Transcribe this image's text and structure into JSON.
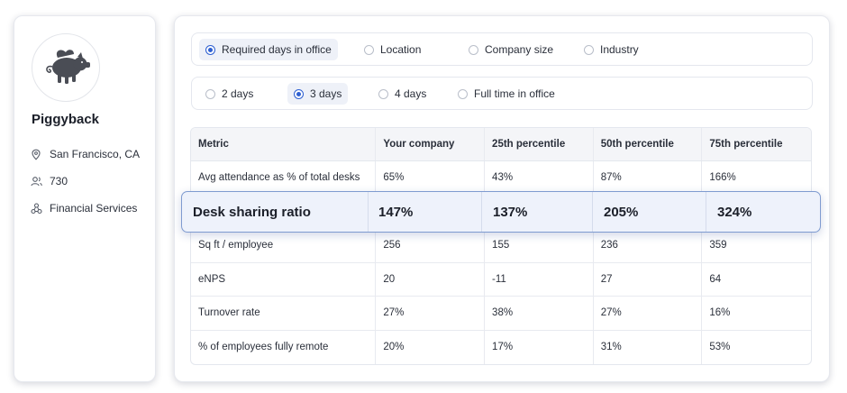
{
  "profile": {
    "name": "Piggyback",
    "location": "San Francisco, CA",
    "employees": "730",
    "industry": "Financial Services",
    "icons": {
      "location": "map-pin-icon",
      "employees": "users-icon",
      "industry": "network-icon",
      "avatar": "flying-pig-logo"
    }
  },
  "filters": {
    "primary": [
      {
        "label": "Required days in office",
        "selected": true
      },
      {
        "label": "Location",
        "selected": false
      },
      {
        "label": "Company size",
        "selected": false
      },
      {
        "label": "Industry",
        "selected": false
      }
    ],
    "days": [
      {
        "label": "2 days",
        "selected": false
      },
      {
        "label": "3 days",
        "selected": true
      },
      {
        "label": "4 days",
        "selected": false
      },
      {
        "label": "Full time in office",
        "selected": false
      }
    ]
  },
  "table": {
    "headers": [
      "Metric",
      "Your company",
      "25th percentile",
      "50th percentile",
      "75th percentile"
    ],
    "rows": [
      [
        "Avg attendance as % of total desks",
        "65%",
        "43%",
        "87%",
        "166%"
      ],
      [
        "Sq ft / employee",
        "256",
        "155",
        "236",
        "359"
      ],
      [
        "eNPS",
        "20",
        "-11",
        "27",
        "64"
      ],
      [
        "Turnover rate",
        "27%",
        "38%",
        "27%",
        "16%"
      ],
      [
        "% of employees fully remote",
        "20%",
        "17%",
        "31%",
        "53%"
      ]
    ],
    "highlight": [
      "Desk sharing ratio",
      "147%",
      "137%",
      "205%",
      "324%"
    ]
  },
  "colors": {
    "accent": "#2d5fd1",
    "highlight_bg": "#eef2fb",
    "highlight_border": "#7f9bd0"
  }
}
